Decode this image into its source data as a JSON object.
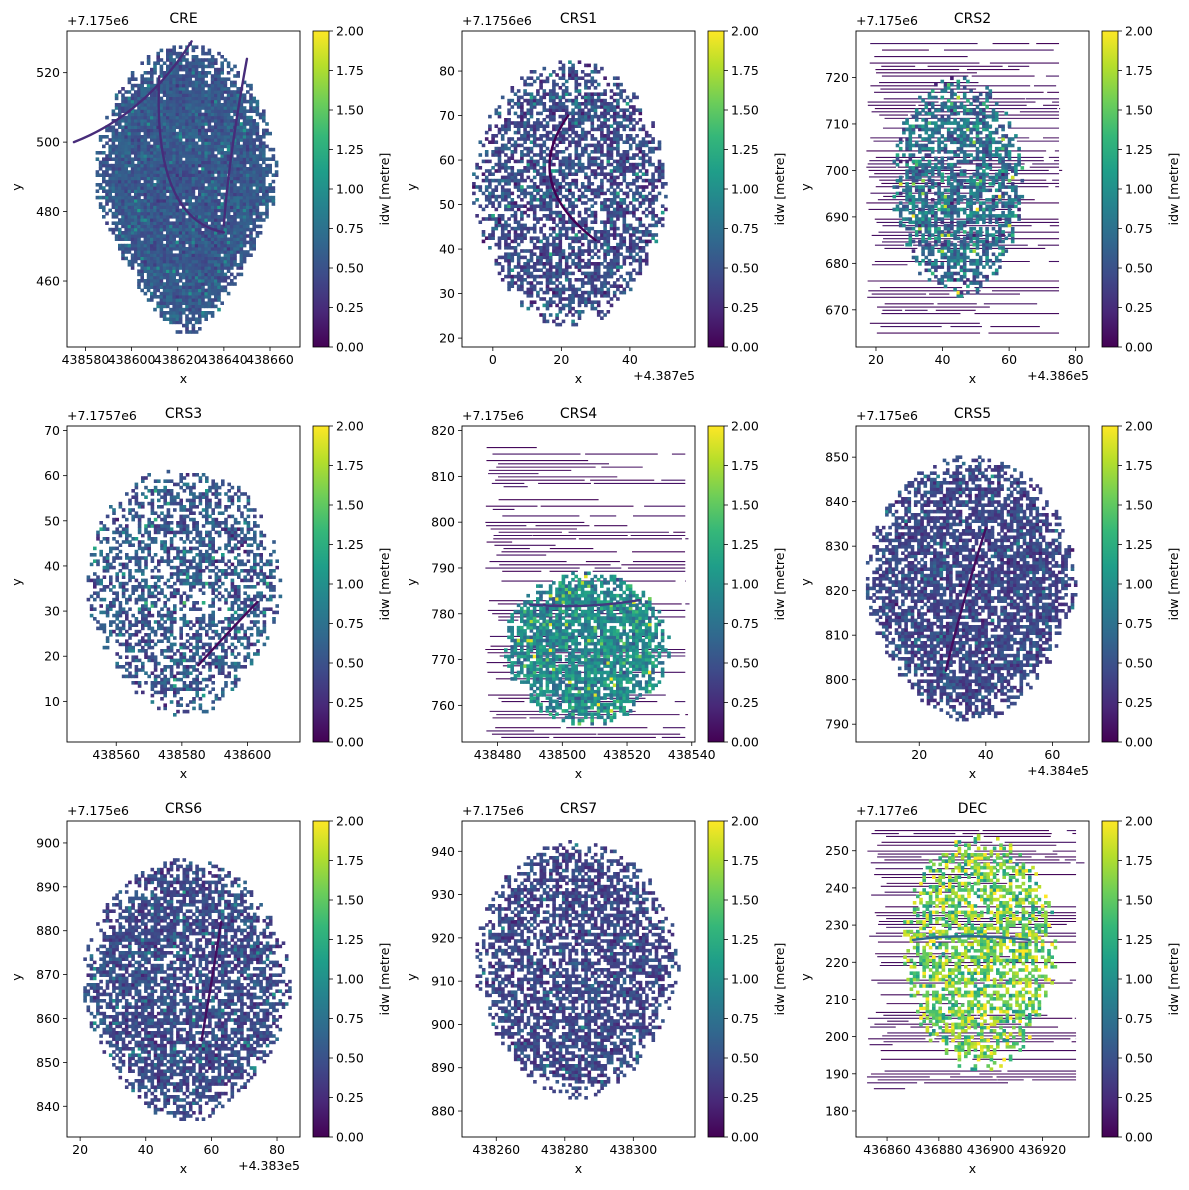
{
  "colorbar": {
    "label": "idw [metre]",
    "ticks": [
      "0.00",
      "0.25",
      "0.50",
      "0.75",
      "1.00",
      "1.25",
      "1.50",
      "1.75",
      "2.00"
    ],
    "min": 0,
    "max": 2,
    "colormap": "viridis",
    "colors": [
      "#440154",
      "#482878",
      "#3e4a89",
      "#31688e",
      "#26828e",
      "#1f9e89",
      "#35b779",
      "#6ece58",
      "#b5de2b",
      "#fde725"
    ]
  },
  "chart_data": [
    {
      "type": "heatmap",
      "title": "CRE",
      "xlabel": "x",
      "ylabel": "y",
      "y_offset_label": "+7.175e6",
      "x_offset_label": "",
      "xticks": [
        "438580",
        "438600",
        "438620",
        "438640",
        "438660"
      ],
      "yticks": [
        "460",
        "480",
        "500",
        "520"
      ],
      "xlim": [
        438572,
        438673
      ],
      "ylim": [
        441,
        532
      ],
      "region": {
        "cx": 438623,
        "cy": 486,
        "rx": 40,
        "ry": 42,
        "bottom_taper": 0.45
      },
      "mean_idw": 0.55,
      "spread": 0.12,
      "fill_density": 0.97,
      "row_striping": false,
      "ridges": [
        [
          438612,
          519,
          438609,
          478,
          438640,
          474
        ],
        [
          438626,
          529,
          438606,
          508,
          438575,
          500
        ],
        [
          438650,
          524,
          438642,
          495,
          438640,
          476
        ]
      ]
    },
    {
      "type": "heatmap",
      "title": "CRS1",
      "xlabel": "x",
      "ylabel": "y",
      "y_offset_label": "+7.1756e6",
      "x_offset_label": "+4.387e5",
      "xticks": [
        "0",
        "20",
        "40"
      ],
      "yticks": [
        "20",
        "30",
        "40",
        "50",
        "60",
        "70",
        "80"
      ],
      "xlim": [
        -9,
        59
      ],
      "ylim": [
        18,
        89
      ],
      "region": {
        "cx": 22,
        "cy": 52,
        "rx": 29,
        "ry": 30,
        "bottom_taper": 0.15
      },
      "mean_idw": 0.45,
      "spread": 0.18,
      "fill_density": 0.62,
      "row_striping": false,
      "ridges": [
        [
          22,
          70,
          8,
          55,
          30,
          42
        ]
      ]
    },
    {
      "type": "heatmap",
      "title": "CRS2",
      "xlabel": "x",
      "ylabel": "y",
      "y_offset_label": "+7.175e6",
      "x_offset_label": "+4.386e5",
      "xticks": [
        "20",
        "40",
        "60",
        "80"
      ],
      "yticks": [
        "670",
        "680",
        "690",
        "700",
        "710",
        "720"
      ],
      "xlim": [
        14,
        84
      ],
      "ylim": [
        662,
        730
      ],
      "region": {
        "cx": 44,
        "cy": 696,
        "rx": 20,
        "ry": 24,
        "bottom_taper": 0.1
      },
      "mean_idw": 0.75,
      "spread": 0.3,
      "fill_density": 0.6,
      "row_striping": true,
      "stripe_box": [
        17,
        75,
        665,
        728
      ],
      "ridges": []
    },
    {
      "type": "heatmap",
      "title": "CRS3",
      "xlabel": "x",
      "ylabel": "y",
      "y_offset_label": "+7.1757e6",
      "x_offset_label": "",
      "xticks": [
        "438560",
        "438580",
        "438600"
      ],
      "yticks": [
        "10",
        "20",
        "30",
        "40",
        "50",
        "60",
        "70"
      ],
      "xlim": [
        438545,
        438616
      ],
      "ylim": [
        1,
        71
      ],
      "region": {
        "cx": 438580,
        "cy": 34,
        "rx": 30,
        "ry": 28,
        "bottom_taper": 0.2
      },
      "mean_idw": 0.55,
      "spread": 0.2,
      "fill_density": 0.5,
      "row_striping": false,
      "ridges": [
        [
          438603,
          32,
          438595,
          26,
          438585,
          18
        ]
      ]
    },
    {
      "type": "heatmap",
      "title": "CRS4",
      "xlabel": "x",
      "ylabel": "y",
      "y_offset_label": "+7.175e6",
      "x_offset_label": "",
      "xticks": [
        "438480",
        "438500",
        "438520",
        "438540"
      ],
      "yticks": [
        "760",
        "770",
        "780",
        "790",
        "800",
        "810",
        "820"
      ],
      "xlim": [
        438469,
        438541
      ],
      "ylim": [
        752,
        821
      ],
      "region": {
        "cx": 438507,
        "cy": 772,
        "rx": 26,
        "ry": 17,
        "bottom_taper": 0.1
      },
      "mean_idw": 0.95,
      "spread": 0.25,
      "fill_density": 0.78,
      "row_striping": true,
      "stripe_box": [
        438476,
        438538,
        753,
        817
      ],
      "ridges": [
        [
          438490,
          782,
          438507,
          781,
          438524,
          783
        ]
      ]
    },
    {
      "type": "heatmap",
      "title": "CRS5",
      "xlabel": "x",
      "ylabel": "y",
      "y_offset_label": "+7.175e6",
      "x_offset_label": "+4.384e5",
      "xticks": [
        "20",
        "40",
        "60"
      ],
      "yticks": [
        "790",
        "800",
        "810",
        "820",
        "830",
        "840",
        "850"
      ],
      "xlim": [
        1,
        71
      ],
      "ylim": [
        786,
        857
      ],
      "region": {
        "cx": 35,
        "cy": 820,
        "rx": 32,
        "ry": 30,
        "bottom_taper": 0.2
      },
      "mean_idw": 0.42,
      "spread": 0.14,
      "fill_density": 0.75,
      "row_striping": false,
      "ridges": [
        [
          28,
          802,
          32,
          815,
          40,
          834
        ]
      ]
    },
    {
      "type": "heatmap",
      "title": "CRS6",
      "xlabel": "x",
      "ylabel": "y",
      "y_offset_label": "+7.175e6",
      "x_offset_label": "+4.383e5",
      "xticks": [
        "20",
        "40",
        "60",
        "80"
      ],
      "yticks": [
        "840",
        "850",
        "860",
        "870",
        "880",
        "890",
        "900"
      ],
      "xlim": [
        16,
        87
      ],
      "ylim": [
        833,
        905
      ],
      "region": {
        "cx": 52,
        "cy": 866,
        "rx": 32,
        "ry": 30,
        "bottom_taper": 0.2
      },
      "mean_idw": 0.45,
      "spread": 0.15,
      "fill_density": 0.72,
      "row_striping": false,
      "ridges": [
        [
          57,
          855,
          60,
          868,
          63,
          882
        ]
      ]
    },
    {
      "type": "heatmap",
      "title": "CRS7",
      "xlabel": "x",
      "ylabel": "y",
      "y_offset_label": "+7.175e6",
      "x_offset_label": "",
      "xticks": [
        "438260",
        "438280",
        "438300"
      ],
      "yticks": [
        "880",
        "890",
        "900",
        "910",
        "920",
        "930",
        "940"
      ],
      "xlim": [
        438250,
        438318
      ],
      "ylim": [
        874,
        947
      ],
      "region": {
        "cx": 438283,
        "cy": 912,
        "rx": 30,
        "ry": 30,
        "bottom_taper": 0.2
      },
      "mean_idw": 0.42,
      "spread": 0.14,
      "fill_density": 0.68,
      "row_striping": false,
      "ridges": []
    },
    {
      "type": "heatmap",
      "title": "DEC",
      "xlabel": "x",
      "ylabel": "y",
      "y_offset_label": "+7.177e6",
      "x_offset_label": "",
      "xticks": [
        "436860",
        "436880",
        "436900",
        "436920"
      ],
      "yticks": [
        "180",
        "190",
        "200",
        "210",
        "220",
        "230",
        "240",
        "250"
      ],
      "xlim": [
        436848,
        436938
      ],
      "ylim": [
        173,
        258
      ],
      "region": {
        "cx": 436895,
        "cy": 222,
        "rx": 30,
        "ry": 32,
        "bottom_taper": 0.1
      },
      "mean_idw": 1.55,
      "spread": 0.35,
      "fill_density": 0.55,
      "row_striping": true,
      "stripe_box": [
        436852,
        436933,
        186,
        257
      ],
      "ridges": [
        [
          436870,
          226,
          436890,
          228,
          436915,
          226
        ]
      ]
    }
  ]
}
